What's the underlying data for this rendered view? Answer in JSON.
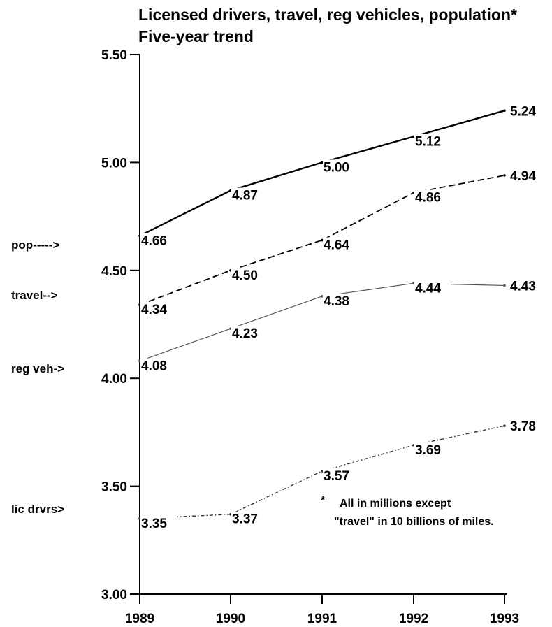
{
  "chart_data": {
    "type": "line",
    "title": "Licensed drivers, travel, reg vehicles, population*",
    "subtitle": "Five-year trend",
    "categories": [
      "1989",
      "1990",
      "1991",
      "1992",
      "1993"
    ],
    "ylim": [
      3.0,
      5.5
    ],
    "yticks": [
      "5.50",
      "5.00",
      "4.50",
      "4.00",
      "3.50",
      "3.00"
    ],
    "grid": false,
    "series": [
      {
        "name": "pop----->",
        "values": [
          4.66,
          4.87,
          5.0,
          5.12,
          5.24
        ],
        "labels": [
          "4.66",
          "4.87",
          "5.00",
          "5.12",
          "5.24"
        ],
        "dash": "solid",
        "color": "#000000"
      },
      {
        "name": "travel-->",
        "values": [
          4.34,
          4.5,
          4.64,
          4.86,
          4.94
        ],
        "labels": [
          "4.34",
          "4.50",
          "4.64",
          "4.86",
          "4.94"
        ],
        "dash": "dashed",
        "color": "#000000"
      },
      {
        "name": "reg veh->",
        "values": [
          4.08,
          4.23,
          4.38,
          4.44,
          4.43
        ],
        "labels": [
          "4.08",
          "4.23",
          "4.38",
          "4.44",
          "4.43"
        ],
        "dash": "solid-light",
        "color": "#555555"
      },
      {
        "name": "lic drvrs>",
        "values": [
          3.35,
          3.37,
          3.57,
          3.69,
          3.78
        ],
        "labels": [
          "3.35",
          "3.37",
          "3.57",
          "3.69",
          "3.78"
        ],
        "dash": "dash-dot",
        "color": "#333333"
      }
    ],
    "footnote": {
      "marker": "*",
      "line1": "All in millions except",
      "line2": "\"travel\" in 10 billions of miles."
    }
  }
}
